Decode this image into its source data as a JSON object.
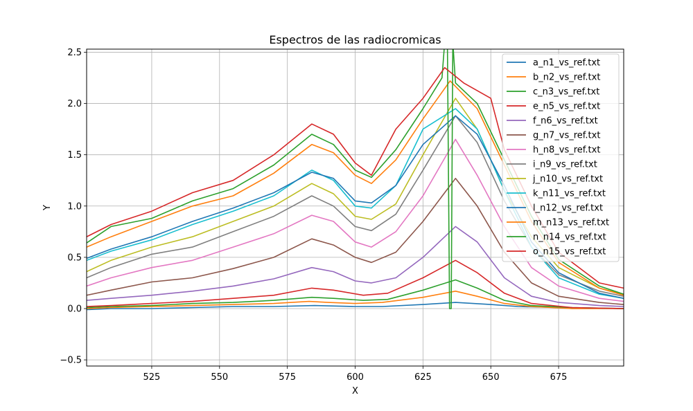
{
  "chart_data": {
    "type": "line",
    "title": "Espectros de las radiocromicas",
    "xlabel": "X",
    "ylabel": "Y",
    "xlim": [
      501,
      699
    ],
    "ylim": [
      -0.56,
      2.53
    ],
    "xticks": [
      525,
      550,
      575,
      600,
      625,
      650,
      675
    ],
    "yticks": [
      -0.5,
      0.0,
      0.5,
      1.0,
      1.5,
      2.0,
      2.5
    ],
    "xtick_labels": [
      "525",
      "550",
      "575",
      "600",
      "625",
      "650",
      "675"
    ],
    "ytick_labels": [
      "−0.5",
      "0.0",
      "0.5",
      "1.0",
      "1.5",
      "2.0",
      "2.5"
    ],
    "grid": true,
    "legend_position": "top-right",
    "series": [
      {
        "name": "a_n1_vs_ref.txt",
        "color": "#1f77b4",
        "values": [
          [
            501,
            -0.01
          ],
          [
            510,
            0.0
          ],
          [
            525,
            0.0
          ],
          [
            540,
            0.01
          ],
          [
            555,
            0.02
          ],
          [
            570,
            0.02
          ],
          [
            585,
            0.03
          ],
          [
            600,
            0.02
          ],
          [
            610,
            0.02
          ],
          [
            625,
            0.04
          ],
          [
            637,
            0.06
          ],
          [
            650,
            0.04
          ],
          [
            660,
            0.02
          ],
          [
            675,
            0.01
          ],
          [
            699,
            0.0
          ]
        ]
      },
      {
        "name": "b_n2_vs_ref.txt",
        "color": "#ff7f0e",
        "values": [
          [
            501,
            0.0
          ],
          [
            510,
            0.01
          ],
          [
            525,
            0.02
          ],
          [
            540,
            0.03
          ],
          [
            555,
            0.04
          ],
          [
            570,
            0.05
          ],
          [
            583,
            0.07
          ],
          [
            590,
            0.06
          ],
          [
            600,
            0.05
          ],
          [
            610,
            0.06
          ],
          [
            625,
            0.11
          ],
          [
            637,
            0.17
          ],
          [
            645,
            0.12
          ],
          [
            655,
            0.05
          ],
          [
            665,
            0.02
          ],
          [
            680,
            0.0
          ],
          [
            699,
            0.0
          ]
        ]
      },
      {
        "name": "c_n3_vs_ref.txt",
        "color": "#2ca02c",
        "values": [
          [
            501,
            0.01
          ],
          [
            510,
            0.02
          ],
          [
            525,
            0.03
          ],
          [
            540,
            0.05
          ],
          [
            555,
            0.06
          ],
          [
            570,
            0.08
          ],
          [
            584,
            0.11
          ],
          [
            592,
            0.1
          ],
          [
            603,
            0.08
          ],
          [
            612,
            0.09
          ],
          [
            625,
            0.18
          ],
          [
            637,
            0.28
          ],
          [
            645,
            0.2
          ],
          [
            655,
            0.08
          ],
          [
            665,
            0.03
          ],
          [
            680,
            0.01
          ],
          [
            699,
            0.0
          ]
        ]
      },
      {
        "name": "e_n5_vs_ref.txt",
        "color": "#d62728",
        "values": [
          [
            501,
            0.02
          ],
          [
            510,
            0.03
          ],
          [
            525,
            0.05
          ],
          [
            540,
            0.07
          ],
          [
            555,
            0.1
          ],
          [
            570,
            0.13
          ],
          [
            584,
            0.2
          ],
          [
            592,
            0.18
          ],
          [
            603,
            0.13
          ],
          [
            612,
            0.15
          ],
          [
            625,
            0.3
          ],
          [
            637,
            0.47
          ],
          [
            645,
            0.35
          ],
          [
            655,
            0.15
          ],
          [
            665,
            0.05
          ],
          [
            680,
            0.01
          ],
          [
            699,
            0.0
          ]
        ]
      },
      {
        "name": "f_n6_vs_ref.txt",
        "color": "#9467bd",
        "values": [
          [
            501,
            0.08
          ],
          [
            510,
            0.1
          ],
          [
            525,
            0.13
          ],
          [
            540,
            0.17
          ],
          [
            555,
            0.22
          ],
          [
            570,
            0.29
          ],
          [
            584,
            0.4
          ],
          [
            592,
            0.36
          ],
          [
            600,
            0.27
          ],
          [
            606,
            0.25
          ],
          [
            615,
            0.3
          ],
          [
            625,
            0.5
          ],
          [
            637,
            0.8
          ],
          [
            645,
            0.65
          ],
          [
            655,
            0.3
          ],
          [
            665,
            0.12
          ],
          [
            675,
            0.06
          ],
          [
            690,
            0.03
          ],
          [
            699,
            0.02
          ]
        ]
      },
      {
        "name": "g_n7_vs_ref.txt",
        "color": "#8c564b",
        "values": [
          [
            501,
            0.13
          ],
          [
            510,
            0.18
          ],
          [
            525,
            0.26
          ],
          [
            540,
            0.3
          ],
          [
            555,
            0.39
          ],
          [
            570,
            0.5
          ],
          [
            584,
            0.68
          ],
          [
            592,
            0.62
          ],
          [
            600,
            0.5
          ],
          [
            606,
            0.45
          ],
          [
            615,
            0.55
          ],
          [
            625,
            0.85
          ],
          [
            637,
            1.27
          ],
          [
            645,
            1.0
          ],
          [
            655,
            0.55
          ],
          [
            665,
            0.25
          ],
          [
            675,
            0.12
          ],
          [
            690,
            0.06
          ],
          [
            699,
            0.04
          ]
        ]
      },
      {
        "name": "h_n8_vs_ref.txt",
        "color": "#e377c2",
        "values": [
          [
            501,
            0.22
          ],
          [
            510,
            0.3
          ],
          [
            525,
            0.4
          ],
          [
            540,
            0.47
          ],
          [
            555,
            0.6
          ],
          [
            570,
            0.73
          ],
          [
            584,
            0.91
          ],
          [
            592,
            0.85
          ],
          [
            600,
            0.65
          ],
          [
            606,
            0.6
          ],
          [
            615,
            0.75
          ],
          [
            625,
            1.1
          ],
          [
            637,
            1.65
          ],
          [
            645,
            1.3
          ],
          [
            655,
            0.8
          ],
          [
            665,
            0.4
          ],
          [
            675,
            0.22
          ],
          [
            690,
            0.1
          ],
          [
            699,
            0.07
          ]
        ]
      },
      {
        "name": "i_n9_vs_ref.txt",
        "color": "#7f7f7f",
        "values": [
          [
            501,
            0.3
          ],
          [
            510,
            0.4
          ],
          [
            525,
            0.53
          ],
          [
            540,
            0.6
          ],
          [
            555,
            0.75
          ],
          [
            570,
            0.9
          ],
          [
            584,
            1.1
          ],
          [
            592,
            1.0
          ],
          [
            600,
            0.8
          ],
          [
            606,
            0.76
          ],
          [
            615,
            0.92
          ],
          [
            625,
            1.35
          ],
          [
            637,
            1.88
          ],
          [
            645,
            1.62
          ],
          [
            655,
            1.05
          ],
          [
            665,
            0.6
          ],
          [
            675,
            0.33
          ],
          [
            690,
            0.17
          ],
          [
            699,
            0.12
          ]
        ]
      },
      {
        "name": "j_n10_vs_ref.txt",
        "color": "#bcbd22",
        "values": [
          [
            501,
            0.36
          ],
          [
            510,
            0.47
          ],
          [
            525,
            0.6
          ],
          [
            540,
            0.7
          ],
          [
            555,
            0.85
          ],
          [
            570,
            1.0
          ],
          [
            584,
            1.22
          ],
          [
            592,
            1.12
          ],
          [
            600,
            0.9
          ],
          [
            606,
            0.87
          ],
          [
            615,
            1.02
          ],
          [
            625,
            1.5
          ],
          [
            637,
            2.05
          ],
          [
            645,
            1.75
          ],
          [
            655,
            1.15
          ],
          [
            665,
            0.7
          ],
          [
            675,
            0.4
          ],
          [
            690,
            0.2
          ],
          [
            699,
            0.14
          ]
        ]
      },
      {
        "name": "k_n11_vs_ref.txt",
        "color": "#17becf",
        "values": [
          [
            501,
            0.47
          ],
          [
            510,
            0.56
          ],
          [
            525,
            0.67
          ],
          [
            540,
            0.82
          ],
          [
            555,
            0.95
          ],
          [
            570,
            1.1
          ],
          [
            584,
            1.35
          ],
          [
            592,
            1.25
          ],
          [
            600,
            1.0
          ],
          [
            606,
            0.98
          ],
          [
            615,
            1.2
          ],
          [
            625,
            1.75
          ],
          [
            637,
            1.95
          ],
          [
            645,
            1.75
          ],
          [
            655,
            1.15
          ],
          [
            665,
            0.6
          ],
          [
            675,
            0.3
          ],
          [
            690,
            0.14
          ],
          [
            699,
            0.1
          ]
        ]
      },
      {
        "name": "l_n12_vs_ref.txt",
        "color": "#1f77b4",
        "values": [
          [
            501,
            0.49
          ],
          [
            510,
            0.58
          ],
          [
            525,
            0.7
          ],
          [
            540,
            0.85
          ],
          [
            555,
            0.98
          ],
          [
            570,
            1.13
          ],
          [
            584,
            1.33
          ],
          [
            592,
            1.27
          ],
          [
            600,
            1.05
          ],
          [
            606,
            1.03
          ],
          [
            615,
            1.2
          ],
          [
            625,
            1.6
          ],
          [
            637,
            1.88
          ],
          [
            645,
            1.7
          ],
          [
            655,
            1.2
          ],
          [
            665,
            0.65
          ],
          [
            675,
            0.35
          ],
          [
            690,
            0.15
          ],
          [
            699,
            0.1
          ]
        ]
      },
      {
        "name": "m_n13_vs_ref.txt",
        "color": "#ff7f0e",
        "values": [
          [
            501,
            0.6
          ],
          [
            510,
            0.7
          ],
          [
            525,
            0.85
          ],
          [
            540,
            1.0
          ],
          [
            555,
            1.1
          ],
          [
            570,
            1.32
          ],
          [
            584,
            1.6
          ],
          [
            592,
            1.52
          ],
          [
            600,
            1.3
          ],
          [
            606,
            1.22
          ],
          [
            615,
            1.45
          ],
          [
            625,
            1.85
          ],
          [
            635,
            2.22
          ],
          [
            645,
            1.95
          ],
          [
            655,
            1.4
          ],
          [
            665,
            0.85
          ],
          [
            675,
            0.45
          ],
          [
            690,
            0.2
          ],
          [
            699,
            0.13
          ]
        ]
      },
      {
        "name": "n_n14_vs_ref.txt",
        "color": "#2ca02c",
        "values": [
          [
            501,
            0.64
          ],
          [
            510,
            0.8
          ],
          [
            525,
            0.88
          ],
          [
            540,
            1.05
          ],
          [
            555,
            1.17
          ],
          [
            570,
            1.4
          ],
          [
            584,
            1.7
          ],
          [
            592,
            1.6
          ],
          [
            600,
            1.35
          ],
          [
            606,
            1.28
          ],
          [
            615,
            1.55
          ],
          [
            625,
            1.95
          ],
          [
            632,
            2.25
          ],
          [
            633,
            2.6
          ],
          [
            634,
            2.6
          ],
          [
            634.8,
            0.0
          ],
          [
            635.4,
            0.0
          ],
          [
            636,
            2.6
          ],
          [
            637,
            2.2
          ],
          [
            645,
            2.0
          ],
          [
            655,
            1.45
          ],
          [
            665,
            0.9
          ],
          [
            675,
            0.48
          ],
          [
            690,
            0.22
          ],
          [
            699,
            0.14
          ]
        ]
      },
      {
        "name": "o_n15_vs_ref.txt",
        "color": "#d62728",
        "values": [
          [
            501,
            0.7
          ],
          [
            510,
            0.82
          ],
          [
            525,
            0.95
          ],
          [
            540,
            1.13
          ],
          [
            555,
            1.25
          ],
          [
            570,
            1.5
          ],
          [
            584,
            1.8
          ],
          [
            592,
            1.7
          ],
          [
            600,
            1.42
          ],
          [
            606,
            1.3
          ],
          [
            615,
            1.75
          ],
          [
            625,
            2.05
          ],
          [
            633,
            2.35
          ],
          [
            640,
            2.2
          ],
          [
            650,
            2.05
          ],
          [
            655,
            1.55
          ],
          [
            665,
            1.0
          ],
          [
            675,
            0.55
          ],
          [
            690,
            0.25
          ],
          [
            699,
            0.2
          ]
        ]
      }
    ]
  }
}
